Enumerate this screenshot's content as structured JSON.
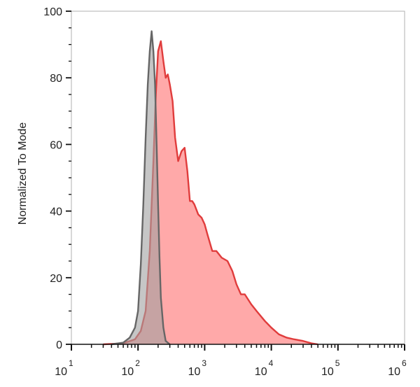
{
  "chart_data": {
    "type": "area",
    "title": "",
    "xlabel": "",
    "ylabel": "Normalized To Mode",
    "x_scale": "log",
    "xlim": [
      10,
      1000000
    ],
    "ylim": [
      0,
      100
    ],
    "grid": false,
    "legend": "none",
    "x_ticks": [
      {
        "base": "10",
        "exp": "1",
        "value": 10
      },
      {
        "base": "10",
        "exp": "2",
        "value": 100
      },
      {
        "base": "10",
        "exp": "3",
        "value": 1000
      },
      {
        "base": "10",
        "exp": "4",
        "value": 10000
      },
      {
        "base": "10",
        "exp": "5",
        "value": 100000
      },
      {
        "base": "10",
        "exp": "6",
        "value": 1000000
      }
    ],
    "y_ticks": [
      "0",
      "20",
      "40",
      "60",
      "80",
      "100"
    ],
    "series": [
      {
        "color": "#e03c3c",
        "fill": "#ff9a9a",
        "x": [
          30,
          60,
          90,
          110,
          130,
          150,
          170,
          185,
          200,
          220,
          240,
          260,
          280,
          300,
          330,
          360,
          400,
          450,
          500,
          550,
          600,
          650,
          700,
          800,
          900,
          1000,
          1100,
          1300,
          1500,
          1800,
          2200,
          2600,
          3000,
          3500,
          4000,
          5000,
          6000,
          8000,
          10000,
          13000,
          17000,
          22000,
          30000,
          40000,
          50000
        ],
        "y": [
          0,
          0.3,
          1.5,
          4,
          10,
          28,
          55,
          75,
          88,
          91,
          85,
          80,
          81,
          78,
          73,
          62,
          55,
          58,
          59,
          52,
          43,
          43,
          42,
          39,
          38,
          36,
          33,
          28,
          28,
          26,
          25,
          22,
          18,
          15,
          15,
          12,
          10,
          7,
          5,
          3,
          2,
          1.5,
          1,
          0.3,
          0
        ]
      },
      {
        "color": "#666666",
        "fill": "#a0a0a0",
        "x": [
          40,
          60,
          75,
          90,
          100,
          110,
          120,
          130,
          140,
          150,
          160,
          170,
          180,
          190,
          200,
          210,
          220,
          240,
          260,
          300
        ],
        "y": [
          0,
          0.5,
          2,
          5,
          10,
          24,
          42,
          62,
          78,
          88,
          94,
          88,
          78,
          60,
          42,
          26,
          14,
          5,
          1,
          0
        ]
      }
    ]
  }
}
